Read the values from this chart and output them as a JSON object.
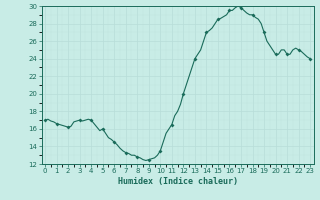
{
  "x": [
    0,
    0.25,
    0.5,
    0.75,
    1,
    1.25,
    1.5,
    1.75,
    2,
    2.25,
    2.5,
    2.75,
    3,
    3.25,
    3.5,
    3.75,
    4,
    4.25,
    4.5,
    4.75,
    5,
    5.25,
    5.5,
    5.75,
    6,
    6.25,
    6.5,
    6.75,
    7,
    7.25,
    7.5,
    7.75,
    8,
    8.25,
    8.5,
    8.75,
    9,
    9.25,
    9.5,
    9.75,
    10,
    10.25,
    10.5,
    10.75,
    11,
    11.25,
    11.5,
    11.75,
    12,
    12.25,
    12.5,
    12.75,
    13,
    13.25,
    13.5,
    13.75,
    14,
    14.25,
    14.5,
    14.75,
    15,
    15.25,
    15.5,
    15.75,
    16,
    16.25,
    16.5,
    16.75,
    17,
    17.25,
    17.5,
    17.75,
    18,
    18.25,
    18.5,
    18.75,
    19,
    19.25,
    19.5,
    19.75,
    20,
    20.25,
    20.5,
    20.75,
    21,
    21.25,
    21.5,
    21.75,
    22,
    22.25,
    22.5,
    22.75,
    23
  ],
  "y": [
    17.0,
    17.1,
    16.9,
    16.8,
    16.6,
    16.5,
    16.4,
    16.3,
    16.2,
    16.3,
    16.8,
    16.9,
    17.0,
    16.9,
    17.0,
    17.1,
    17.0,
    16.6,
    16.2,
    15.8,
    16.0,
    15.5,
    15.0,
    14.8,
    14.5,
    14.2,
    13.8,
    13.5,
    13.3,
    13.2,
    13.0,
    13.0,
    12.8,
    12.7,
    12.5,
    12.4,
    12.5,
    12.6,
    12.7,
    13.0,
    13.5,
    14.5,
    15.5,
    16.0,
    16.5,
    17.5,
    18.0,
    18.8,
    20.0,
    21.0,
    22.0,
    23.0,
    24.0,
    24.5,
    25.0,
    26.0,
    27.0,
    27.2,
    27.5,
    28.0,
    28.5,
    28.6,
    28.8,
    29.0,
    29.5,
    29.5,
    29.8,
    30.0,
    29.8,
    29.5,
    29.2,
    29.0,
    29.0,
    28.7,
    28.5,
    28.0,
    27.0,
    26.0,
    25.5,
    25.0,
    24.5,
    24.5,
    25.0,
    25.0,
    24.5,
    24.5,
    25.0,
    25.2,
    25.0,
    24.8,
    24.5,
    24.2,
    24.0
  ],
  "hourly_x": [
    0,
    1,
    2,
    3,
    4,
    5,
    6,
    7,
    8,
    9,
    10,
    11,
    12,
    13,
    14,
    15,
    16,
    17,
    18,
    19,
    20,
    21,
    22,
    23
  ],
  "hourly_y": [
    17.0,
    16.6,
    16.2,
    17.0,
    17.0,
    16.0,
    14.5,
    13.3,
    12.8,
    12.5,
    13.5,
    16.5,
    20.0,
    24.0,
    27.0,
    28.5,
    29.5,
    29.8,
    29.0,
    27.0,
    24.5,
    24.5,
    25.0,
    24.0
  ],
  "xlabel": "Humidex (Indice chaleur)",
  "ylim": [
    12,
    30
  ],
  "xlim_min": -0.3,
  "xlim_max": 23.3,
  "yticks": [
    12,
    14,
    16,
    18,
    20,
    22,
    24,
    26,
    28,
    30
  ],
  "xticks": [
    0,
    1,
    2,
    3,
    4,
    5,
    6,
    7,
    8,
    9,
    10,
    11,
    12,
    13,
    14,
    15,
    16,
    17,
    18,
    19,
    20,
    21,
    22,
    23
  ],
  "line_color": "#1a6b5a",
  "marker_color": "#1a6b5a",
  "bg_color": "#c8ece6",
  "grid_major_color": "#b8ddd8",
  "grid_minor_color": "#c0e4de"
}
